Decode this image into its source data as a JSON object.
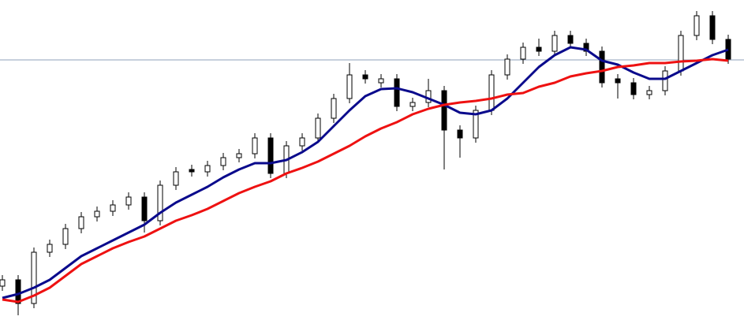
{
  "chart_data": {
    "type": "candlestick",
    "categories": [
      null,
      null,
      null,
      null,
      null,
      null,
      null,
      null,
      null,
      null,
      null,
      null,
      null,
      null,
      null,
      null,
      null,
      null,
      null,
      null,
      null,
      null,
      null,
      null,
      null,
      null,
      null,
      null,
      null,
      null,
      null,
      null,
      null,
      null,
      null,
      null,
      null,
      null,
      null,
      null,
      null,
      null,
      null,
      null,
      null,
      null,
      null
    ],
    "open": [
      62,
      70,
      40,
      105,
      115,
      135,
      150,
      157,
      165,
      175,
      145,
      190,
      210,
      207,
      215,
      225,
      230,
      250,
      205,
      240,
      250,
      275,
      300,
      330,
      320,
      325,
      290,
      295,
      310,
      260,
      250,
      285,
      330,
      350,
      365,
      360,
      380,
      370,
      360,
      325,
      320,
      305,
      310,
      335,
      380,
      405,
      375
    ],
    "high": [
      76,
      76,
      111,
      121,
      141,
      156,
      163,
      171,
      181,
      181,
      196,
      213,
      216,
      221,
      231,
      236,
      256,
      256,
      246,
      256,
      281,
      306,
      345,
      336,
      331,
      331,
      301,
      325,
      316,
      266,
      291,
      336,
      356,
      371,
      376,
      386,
      386,
      376,
      366,
      331,
      326,
      316,
      341,
      386,
      411,
      411,
      381
    ],
    "low": [
      56,
      25,
      34,
      99,
      109,
      129,
      144,
      151,
      159,
      130,
      139,
      184,
      201,
      201,
      209,
      219,
      224,
      199,
      199,
      234,
      244,
      269,
      294,
      319,
      314,
      284,
      284,
      289,
      210,
      225,
      244,
      279,
      324,
      344,
      354,
      354,
      364,
      354,
      314,
      300,
      299,
      299,
      304,
      329,
      374,
      369,
      344
    ],
    "close": [
      70,
      40,
      105,
      115,
      135,
      150,
      157,
      165,
      175,
      145,
      190,
      207,
      207,
      215,
      225,
      230,
      250,
      205,
      240,
      250,
      275,
      300,
      330,
      325,
      325,
      290,
      295,
      310,
      260,
      250,
      285,
      330,
      350,
      365,
      360,
      380,
      370,
      360,
      320,
      320,
      305,
      310,
      335,
      380,
      405,
      375,
      350
    ],
    "candle_color": "#000000",
    "up_fill": "#ffffff",
    "down_fill": "#000000",
    "series": [
      {
        "color": "#0a0a8c",
        "values": [
          47,
          52,
          60,
          70,
          85,
          100,
          110,
          120,
          130,
          140,
          155,
          168,
          178,
          188,
          200,
          210,
          218,
          218,
          222,
          232,
          245,
          265,
          285,
          303,
          312,
          313,
          308,
          300,
          292,
          282,
          280,
          285,
          300,
          320,
          340,
          355,
          365,
          362,
          348,
          343,
          333,
          325,
          325,
          335,
          345,
          355,
          362
        ]
      },
      {
        "color": "#ee1111",
        "values": [
          45,
          42,
          50,
          60,
          75,
          90,
          100,
          110,
          118,
          125,
          135,
          145,
          152,
          160,
          170,
          180,
          188,
          195,
          205,
          212,
          220,
          230,
          240,
          252,
          262,
          270,
          280,
          287,
          292,
          295,
          297,
          300,
          305,
          307,
          315,
          320,
          328,
          332,
          335,
          340,
          342,
          345,
          345,
          347,
          348,
          350,
          348
        ]
      }
    ],
    "hline": 349,
    "hline_color": "#8fa2b8",
    "ylim": [
      0,
      425
    ]
  }
}
